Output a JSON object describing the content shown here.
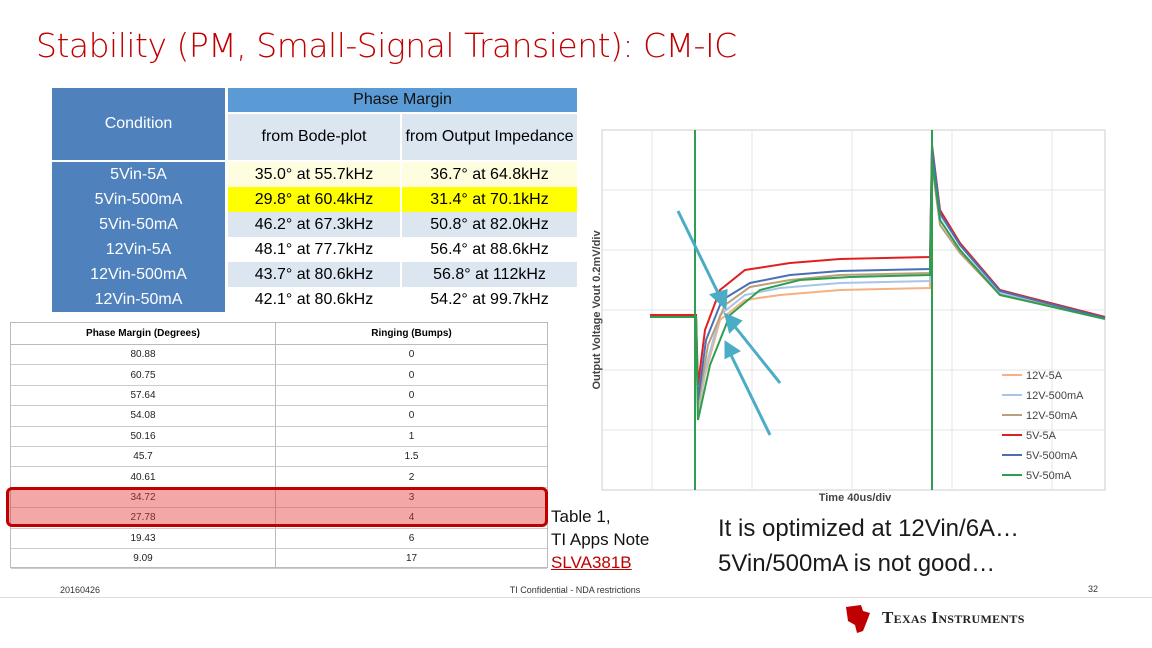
{
  "title": "Stability (PM, Small-Signal Transient): CM-IC",
  "table1": {
    "condition_header": "Condition",
    "group_header": "Phase Margin",
    "sub_headers": [
      "from Bode-plot",
      "from Output Impedance"
    ],
    "rows": [
      [
        "5Vin-5A",
        "35.0° at 55.7kHz",
        "36.7° at 64.8kHz"
      ],
      [
        "5Vin-500mA",
        "29.8° at 60.4kHz",
        "31.4° at 70.1kHz"
      ],
      [
        "5Vin-50mA",
        "46.2° at 67.3kHz",
        "50.8° at 82.0kHz"
      ],
      [
        "12Vin-5A",
        "48.1° at 77.7kHz",
        "56.4° at 88.6kHz"
      ],
      [
        "12Vin-500mA",
        "43.7° at 80.6kHz",
        "56.8° at 112kHz"
      ],
      [
        "12Vin-50mA",
        "42.1° at 80.6kHz",
        "54.2° at 99.7kHz"
      ]
    ]
  },
  "table2": {
    "headers": [
      "Phase Margin (Degrees)",
      "Ringing (Bumps)"
    ],
    "rows": [
      [
        "80.88",
        "0"
      ],
      [
        "60.75",
        "0"
      ],
      [
        "57.64",
        "0"
      ],
      [
        "54.08",
        "0"
      ],
      [
        "50.16",
        "1"
      ],
      [
        "45.7",
        "1.5"
      ],
      [
        "40.61",
        "2"
      ],
      [
        "34.72",
        "3"
      ],
      [
        "27.78",
        "4"
      ],
      [
        "19.43",
        "6"
      ],
      [
        "9.09",
        "17"
      ]
    ]
  },
  "scope": {
    "y_label": "Output Voltage  Vout  0.2mV/div",
    "x_label": "Time  40us/div",
    "legend": [
      "12V-5A",
      "12V-500mA",
      "12V-50mA",
      "5V-5A",
      "5V-500mA",
      "5V-50mA"
    ]
  },
  "caption": [
    "Table 1,",
    "TI Apps Note",
    "SLVA381B"
  ],
  "comment": [
    "It is optimized at 12Vin/6A…",
    "5Vin/500mA is not good…"
  ],
  "footer": {
    "date": "20160426",
    "confidential": "TI Confidential - NDA restrictions",
    "page": "32",
    "logo": "Texas Instruments"
  }
}
